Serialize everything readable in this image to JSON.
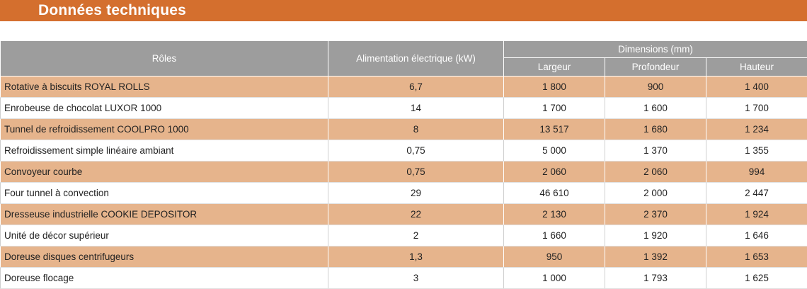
{
  "title": "Données techniques",
  "headers": {
    "roles": "Rôles",
    "power": "Alimentation électrique (kW)",
    "dimensions": "Dimensions (mm)",
    "width": "Largeur",
    "depth": "Profondeur",
    "height": "Hauteur"
  },
  "rows": [
    {
      "role": "Rotative à biscuits ROYAL ROLLS",
      "power": "6,7",
      "width": "1 800",
      "depth": "900",
      "height": "1 400"
    },
    {
      "role": "Enrobeuse de chocolat LUXOR 1000",
      "power": "14",
      "width": "1 700",
      "depth": "1 600",
      "height": "1 700"
    },
    {
      "role": "Tunnel de refroidissement COOLPRO 1000",
      "power": "8",
      "width": "13 517",
      "depth": "1 680",
      "height": "1 234"
    },
    {
      "role": "Refroidissement simple linéaire ambiant",
      "power": "0,75",
      "width": "5 000",
      "depth": "1 370",
      "height": "1 355"
    },
    {
      "role": "Convoyeur courbe",
      "power": "0,75",
      "width": "2 060",
      "depth": "2 060",
      "height": "994"
    },
    {
      "role": "Four tunnel à convection",
      "power": "29",
      "width": "46 610",
      "depth": "2 000",
      "height": "2 447"
    },
    {
      "role": "Dresseuse industrielle COOKIE DEPOSITOR",
      "power": "22",
      "width": "2 130",
      "depth": "2 370",
      "height": "1 924"
    },
    {
      "role": "Unité de décor supérieur",
      "power": "2",
      "width": "1 660",
      "depth": "1 920",
      "height": "1 646"
    },
    {
      "role": "Doreuse disques centrifugeurs",
      "power": "1,3",
      "width": "950",
      "depth": "1 392",
      "height": "1 653"
    },
    {
      "role": "Doreuse flocage",
      "power": "3",
      "width": "1 000",
      "depth": "1 793",
      "height": "1 625"
    }
  ],
  "colors": {
    "banner": "#d46f2e",
    "header": "#9d9d9d",
    "row_highlight": "#e6b48c",
    "row_plain": "#ffffff"
  }
}
